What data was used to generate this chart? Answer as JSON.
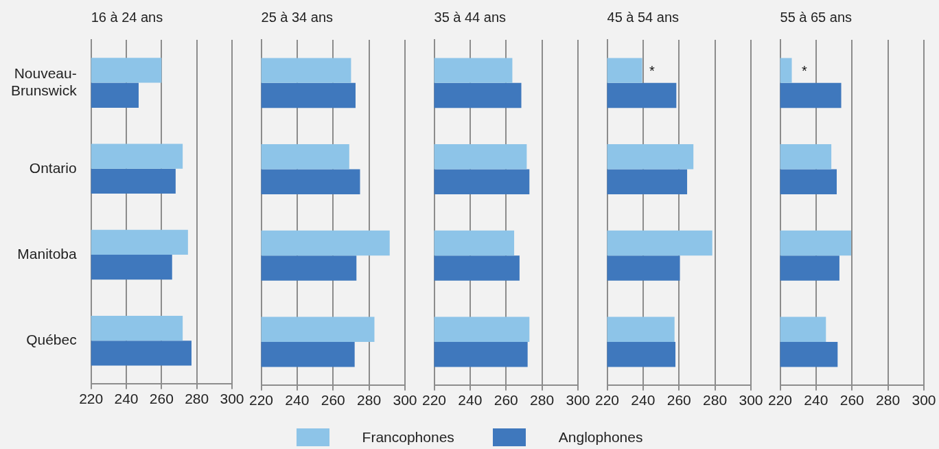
{
  "chart_data": [
    {
      "type": "bar",
      "orientation": "horizontal",
      "title": "16 à 24 ans",
      "categories": [
        "Nouveau-Brunswick",
        "Ontario",
        "Manitoba",
        "Québec"
      ],
      "series": [
        {
          "name": "Francophones",
          "color": "#8dc4e8",
          "values": [
            260,
            272,
            275,
            272
          ]
        },
        {
          "name": "Anglophones",
          "color": "#3f78bd",
          "values": [
            247,
            268,
            266,
            277
          ]
        }
      ],
      "xlim": [
        220,
        300
      ],
      "xticks": [
        220,
        240,
        260,
        280,
        300
      ],
      "grid": "x",
      "legend": "bottom"
    },
    {
      "type": "bar",
      "orientation": "horizontal",
      "title": "25 à 34 ans",
      "categories": [
        "Nouveau-Brunswick",
        "Ontario",
        "Manitoba",
        "Québec"
      ],
      "series": [
        {
          "color": "#8dc4e8",
          "values": [
            270,
            269,
            291.5,
            283
          ]
        },
        {
          "color": "#3f78bd",
          "values": [
            272.5,
            275,
            273,
            272
          ]
        }
      ],
      "xlim": [
        220,
        300
      ],
      "xticks": [
        220,
        240,
        260,
        280,
        300
      ],
      "grid": "x",
      "tick_labels": "x"
    },
    {
      "type": "bar",
      "orientation": "horizontal",
      "title": "35 à 44 ans",
      "categories": [
        "Nouveau-Brunswick",
        "Ontario",
        "Manitoba",
        "Québec"
      ],
      "series": [
        {
          "color": "#8dc4e8",
          "values": [
            263.5,
            271.5,
            264.5,
            273
          ]
        },
        {
          "color": "#3f78bd",
          "values": [
            268.5,
            273,
            267.5,
            272
          ]
        }
      ],
      "xlim": [
        220,
        300
      ],
      "xticks": [
        220,
        240,
        260,
        280,
        300
      ],
      "grid": "x",
      "tick_labels": "x"
    },
    {
      "type": "bar",
      "orientation": "horizontal",
      "title": "45 à 54 ans",
      "categories": [
        "Nouveau-Brunswick",
        "Ontario",
        "Manitoba",
        "Québec"
      ],
      "series": [
        {
          "color": "#8dc4e8",
          "values": [
            239.5,
            268,
            278.5,
            257.5
          ]
        },
        {
          "color": "#3f78bd",
          "values": [
            258.5,
            264.5,
            260.5,
            258
          ]
        }
      ],
      "xlim": [
        220,
        300
      ],
      "xticks": [
        220,
        240,
        260,
        280,
        300
      ],
      "grid": "x",
      "tick_labels": "x",
      "annotations": [
        {
          "text": "*",
          "x": 245,
          "y": "Nouveau-Brunswick"
        }
      ]
    },
    {
      "type": "bar",
      "orientation": "horizontal",
      "title": "55 à 65 ans",
      "categories": [
        "Nouveau-Brunswick",
        "Ontario",
        "Manitoba",
        "Québec"
      ],
      "series": [
        {
          "color": "#8dc4e8",
          "values": [
            226.5,
            248.5,
            259.5,
            245.5
          ]
        },
        {
          "color": "#3f78bd",
          "values": [
            254,
            251.5,
            253,
            252
          ]
        }
      ],
      "xlim": [
        220,
        300
      ],
      "xticks": [
        220,
        240,
        260,
        280,
        300
      ],
      "grid": "x",
      "tick_labels": "x",
      "annotations": [
        {
          "text": "*",
          "x": 233.5,
          "y": "Nouveau-Brunswick"
        }
      ]
    }
  ]
}
